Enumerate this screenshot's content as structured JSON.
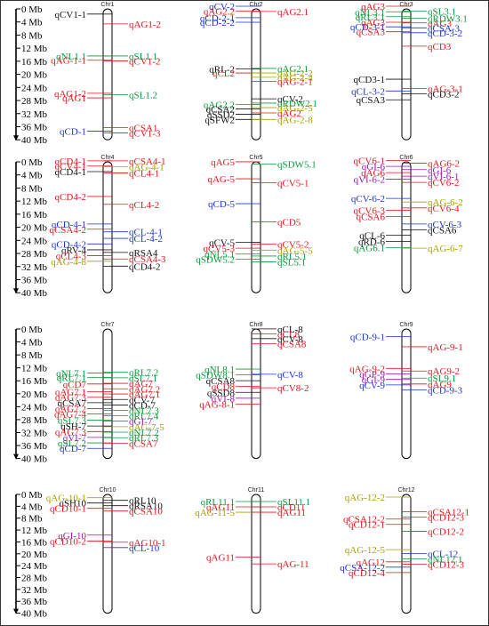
{
  "axis_labels": [
    "0 Mb",
    "4 Mb",
    "8 Mb",
    "12 Mb",
    "16 Mb",
    "20 Mb",
    "24 Mb",
    "28 Mb",
    "32 Mb",
    "36 Mb",
    "40 Mb"
  ],
  "colors": {
    "red": "#e8151c",
    "green": "#0b9a3c",
    "blue": "#1b35d8",
    "black": "#111111",
    "olive": "#a6a000",
    "purple": "#9a15b4",
    "axis": "#000000"
  },
  "chromosomes": [
    {
      "name": "Chr1",
      "length_mb": 40,
      "left": [
        [
          "qCV1-1",
          2.4,
          "black"
        ],
        [
          "qNL1.1",
          15.2,
          "green"
        ],
        [
          "qAG-1-1",
          16.5,
          "red"
        ],
        [
          "qAG1-2",
          26.6,
          "red"
        ],
        [
          "qAG1",
          28.0,
          "red"
        ],
        [
          "qCD-1",
          38.2,
          "blue"
        ]
      ],
      "right": [
        [
          "qAG1-2",
          5.4,
          "red"
        ],
        [
          "qSL1.1",
          15.2,
          "green"
        ],
        [
          "qCV1-2",
          16.7,
          "red"
        ],
        [
          "qSL1.2",
          27.0,
          "green"
        ],
        [
          "qCSA1",
          37.1,
          "red"
        ],
        [
          "qCV1-3",
          38.7,
          "red"
        ]
      ]
    },
    {
      "name": "Chr2",
      "length_mb": 40,
      "left": [
        [
          "qCV-2",
          0.0,
          "blue"
        ],
        [
          "qAG2.2",
          1.5,
          "red"
        ],
        [
          "qCD-2-1",
          3.5,
          "blue"
        ],
        [
          "qCD-2-2",
          4.9,
          "blue"
        ],
        [
          "qRL-2",
          19.2,
          "black"
        ],
        [
          "qCL2",
          20.4,
          "red"
        ],
        [
          "qAG2.2",
          30.0,
          "green"
        ],
        [
          "qCSA2",
          31.4,
          "black"
        ],
        [
          "qSSD2",
          33.0,
          "black"
        ],
        [
          "qSFW2",
          34.6,
          "black"
        ]
      ],
      "right": [
        [
          "qAG2.1",
          1.6,
          "red"
        ],
        [
          "qAG2.1",
          19.0,
          "green"
        ],
        [
          "qAG-2-2",
          20.4,
          "olive"
        ],
        [
          "qAG-2-4",
          21.7,
          "olive"
        ],
        [
          "qAG-2-1",
          23.0,
          "red"
        ],
        [
          "qCV-2",
          28.3,
          "black"
        ],
        [
          "qRDW2.1",
          29.6,
          "green"
        ],
        [
          "qAG-2-5",
          31.0,
          "olive"
        ],
        [
          "qAG2",
          32.6,
          "red"
        ],
        [
          "qAG-2-8",
          34.6,
          "olive"
        ]
      ]
    },
    {
      "name": "Chr3",
      "length_mb": 40,
      "left": [
        [
          "qAG3",
          0.0,
          "red"
        ],
        [
          "qNL3.1",
          1.7,
          "green"
        ],
        [
          "qRL3.1",
          3.2,
          "green"
        ],
        [
          "qAG3",
          4.9,
          "red"
        ],
        [
          "qCD-3-1",
          6.3,
          "blue"
        ],
        [
          "qCSA3",
          7.8,
          "red"
        ],
        [
          "qCD3-1",
          22.3,
          "black"
        ],
        [
          "qCL-3-2",
          25.9,
          "blue"
        ],
        [
          "qCSA3",
          28.6,
          "black"
        ]
      ],
      "right": [
        [
          "qSL3.1",
          1.5,
          "green"
        ],
        [
          "qRDW3.1",
          3.7,
          "green"
        ],
        [
          "qAG3",
          5.1,
          "red"
        ],
        [
          "qCSA-3",
          6.6,
          "blue"
        ],
        [
          "qCD-3-2",
          8.1,
          "blue"
        ],
        [
          "qCD3",
          12.2,
          "red"
        ],
        [
          "qAG-3-1",
          25.1,
          "red"
        ],
        [
          "qCD3-2",
          26.8,
          "black"
        ]
      ]
    },
    {
      "name": "Chr4",
      "length_mb": 40,
      "left": [
        [
          "qCD4-1",
          0.5,
          "red"
        ],
        [
          "qCV4-1",
          2.1,
          "red"
        ],
        [
          "qCD4-1",
          3.8,
          "black"
        ],
        [
          "qCD4-2",
          11.4,
          "red"
        ],
        [
          "qCD-4-1",
          19.8,
          "blue"
        ],
        [
          "qCSA4-2",
          21.4,
          "red"
        ],
        [
          "qCD-4-2",
          25.9,
          "blue"
        ],
        [
          "qRV-4",
          27.7,
          "black"
        ],
        [
          "qCL4-3",
          29.5,
          "red"
        ],
        [
          "qAG-4-8",
          31.2,
          "olive"
        ]
      ],
      "right": [
        [
          "qCSA4-1",
          0.5,
          "red"
        ],
        [
          "qAG-4-1",
          2.3,
          "olive"
        ],
        [
          "qCL4-1",
          4.2,
          "red"
        ],
        [
          "qCL4-2",
          13.8,
          "red"
        ],
        [
          "qCL-4-1",
          22.2,
          "blue"
        ],
        [
          "qCL-4-2",
          24.2,
          "blue"
        ],
        [
          "qRSA4",
          28.5,
          "black"
        ],
        [
          "qCSA4-3",
          30.5,
          "red"
        ],
        [
          "qCD4-2",
          32.7,
          "black"
        ]
      ]
    },
    {
      "name": "Chr5",
      "length_mb": 40,
      "left": [
        [
          "qAG5",
          0.8,
          "red"
        ],
        [
          "qAG-5",
          6.0,
          "red"
        ],
        [
          "qCD-5",
          13.6,
          "blue"
        ],
        [
          "qCV-5",
          25.4,
          "black"
        ],
        [
          "qCV5-3",
          27.2,
          "red"
        ],
        [
          "qNL5.1",
          29.0,
          "green"
        ],
        [
          "qSDW5.2",
          30.6,
          "green"
        ]
      ],
      "right": [
        [
          "qSDW5.1",
          1.5,
          "green"
        ],
        [
          "qCV5-1",
          7.2,
          "red"
        ],
        [
          "qCD5",
          19.2,
          "red"
        ],
        [
          "qCV5-2",
          26.0,
          "red"
        ],
        [
          "qAG-5-5",
          27.8,
          "olive"
        ],
        [
          "qRL5.1",
          29.6,
          "green"
        ],
        [
          "qSL5.1",
          31.4,
          "green"
        ]
      ]
    },
    {
      "name": "Chr6",
      "length_mb": 40,
      "left": [
        [
          "qCV6-1",
          0.4,
          "red"
        ],
        [
          "qGI-6",
          2.2,
          "purple"
        ],
        [
          "qAG6",
          4.1,
          "red"
        ],
        [
          "qVI-6-2",
          6.1,
          "purple"
        ],
        [
          "qCV-6-2",
          12.0,
          "blue"
        ],
        [
          "qCV6-3",
          15.6,
          "red"
        ],
        [
          "qCSA6",
          17.5,
          "red"
        ],
        [
          "qCL-6",
          23.2,
          "black"
        ],
        [
          "qRD-6",
          25.1,
          "black"
        ],
        [
          "qAG6.1",
          27.0,
          "green"
        ]
      ],
      "right": [
        [
          "qAG6-2",
          1.2,
          "red"
        ],
        [
          "qGI-6",
          3.2,
          "purple"
        ],
        [
          "qVI-6-1",
          5.2,
          "purple"
        ],
        [
          "qCV6-2",
          7.1,
          "red"
        ],
        [
          "qAG-6-2",
          13.1,
          "olive"
        ],
        [
          "qCV6-4",
          14.9,
          "red"
        ],
        [
          "qCV-6-3",
          19.8,
          "blue"
        ],
        [
          "qCSA6",
          21.6,
          "black"
        ],
        [
          "qAG-6-7",
          27.2,
          "olive"
        ]
      ]
    },
    {
      "name": "Chr7",
      "length_mb": 40,
      "left": [
        [
          "qNL7.1",
          14.4,
          "green"
        ],
        [
          "qRL7.1",
          15.8,
          "green"
        ],
        [
          "qCD7",
          17.8,
          "red"
        ],
        [
          "qAG7.1",
          20.2,
          "red"
        ],
        [
          "qAG7.3",
          21.9,
          "red"
        ],
        [
          "qCSA7",
          23.6,
          "black"
        ],
        [
          "qAG7.2",
          25.4,
          "red"
        ],
        [
          "qAG7-4",
          27.1,
          "red"
        ],
        [
          "qSL7.3",
          29.0,
          "green"
        ],
        [
          "qSH-7",
          30.8,
          "black"
        ],
        [
          "qAG7.3",
          32.5,
          "red"
        ],
        [
          "qVI-7",
          34.3,
          "purple"
        ],
        [
          "qSL7.2",
          36.0,
          "green"
        ],
        [
          "qCD-7",
          37.7,
          "blue"
        ]
      ],
      "right": [
        [
          "qRL7.2",
          14.2,
          "green"
        ],
        [
          "qSL7.1",
          15.9,
          "green"
        ],
        [
          "qAG7",
          17.6,
          "red"
        ],
        [
          "qAG7.2",
          19.3,
          "red"
        ],
        [
          "qAG7.1",
          20.9,
          "red"
        ],
        [
          "qCV-7",
          22.6,
          "black"
        ],
        [
          "qCD-7",
          24.3,
          "black"
        ],
        [
          "qNL7.3",
          26.0,
          "green"
        ],
        [
          "qRL7.4",
          27.6,
          "green"
        ],
        [
          "qGI-7",
          29.3,
          "purple"
        ],
        [
          "qAG-7-5",
          31.0,
          "olive"
        ],
        [
          "qNL7.2",
          32.7,
          "green"
        ],
        [
          "qRL7.3",
          34.4,
          "green"
        ],
        [
          "qCSA7",
          36.1,
          "red"
        ]
      ]
    },
    {
      "name": "Chr8",
      "length_mb": 40,
      "left": [
        [
          "qNL8.1",
          13.2,
          "green"
        ],
        [
          "qSDW8.1",
          15.0,
          "green"
        ],
        [
          "qCSA8",
          16.8,
          "black"
        ],
        [
          "qCD8",
          18.6,
          "red"
        ],
        [
          "qSSD8",
          20.4,
          "black"
        ],
        [
          "qVI-8",
          22.2,
          "purple"
        ],
        [
          "qAG-8-1",
          24.0,
          "red"
        ]
      ],
      "right": [
        [
          "qCL-8",
          0.8,
          "black"
        ],
        [
          "qCL8",
          2.3,
          "red"
        ],
        [
          "qCV-8",
          3.8,
          "black"
        ],
        [
          "qCSA8",
          5.4,
          "red"
        ],
        [
          "qCV-8",
          14.8,
          "blue"
        ],
        [
          "qCV8-2",
          19.0,
          "red"
        ]
      ]
    },
    {
      "name": "Chr9",
      "length_mb": 40,
      "left": [
        [
          "qCD-9-1",
          3.2,
          "blue"
        ],
        [
          "qAG-9-2",
          13.0,
          "red"
        ],
        [
          "qGP-9",
          14.7,
          "purple"
        ],
        [
          "qGI-9",
          16.4,
          "purple"
        ],
        [
          "qCV-9",
          18.1,
          "blue"
        ]
      ],
      "right": [
        [
          "qAG-9-1",
          6.3,
          "red"
        ],
        [
          "qAG9-2",
          13.8,
          "red"
        ],
        [
          "qSL9.1",
          16.0,
          "green"
        ],
        [
          "qAG9",
          17.8,
          "red"
        ],
        [
          "qCD-9-3",
          19.6,
          "blue"
        ]
      ]
    },
    {
      "name": "Chr10",
      "length_mb": 40,
      "left": [
        [
          "qAG-10-1",
          2.0,
          "olive"
        ],
        [
          "qSH10",
          3.8,
          "black"
        ],
        [
          "qCD10-1",
          5.6,
          "red"
        ],
        [
          "qGI-10",
          14.6,
          "purple"
        ],
        [
          "qCD10-2",
          16.6,
          "red"
        ]
      ],
      "right": [
        [
          "qRL10",
          2.9,
          "black"
        ],
        [
          "qRSA10",
          4.7,
          "black"
        ],
        [
          "qCSA10",
          6.5,
          "red"
        ],
        [
          "qAG10-1",
          17.0,
          "red"
        ],
        [
          "qCL-10",
          18.8,
          "blue"
        ]
      ]
    },
    {
      "name": "Chr11",
      "length_mb": 40,
      "left": [
        [
          "qRL11.1",
          3.3,
          "green"
        ],
        [
          "qAG11",
          5.1,
          "red"
        ],
        [
          "qAG-11-5",
          6.9,
          "olive"
        ],
        [
          "qAG11",
          22.0,
          "red"
        ]
      ],
      "right": [
        [
          "qSL11.1",
          3.3,
          "green"
        ],
        [
          "qCD11",
          5.1,
          "red"
        ],
        [
          "qAG11",
          6.9,
          "red"
        ],
        [
          "qAG-11",
          24.3,
          "red"
        ]
      ]
    },
    {
      "name": "Chr12",
      "length_mb": 40,
      "left": [
        [
          "qAG-12-2",
          1.8,
          "olive"
        ],
        [
          "qCSA12-2",
          9.2,
          "red"
        ],
        [
          "qCD12-1",
          11.0,
          "red"
        ],
        [
          "qAG-12-5",
          19.5,
          "olive"
        ],
        [
          "qAG12",
          23.6,
          "red"
        ],
        [
          "qCSA-12-2",
          25.4,
          "blue"
        ],
        [
          "qCD12-4",
          27.2,
          "red"
        ]
      ],
      "right": [
        [
          "qCSA12-1",
          6.7,
          "red"
        ],
        [
          "qCD12-3",
          8.5,
          "red"
        ],
        [
          "qCD12-2",
          13.3,
          "red"
        ],
        [
          "qCL-12",
          20.8,
          "blue"
        ],
        [
          "qNL12.1",
          22.6,
          "green"
        ],
        [
          "qCD12-3",
          24.4,
          "red"
        ]
      ]
    }
  ]
}
